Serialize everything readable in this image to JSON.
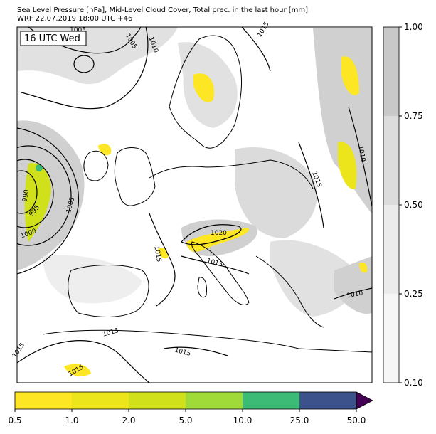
{
  "header": {
    "title_line1": "Sea Level Pressure [hPa], Mid-Level Cloud Cover, Total prec. in the last hour [mm]",
    "title_line2": "WRF 22.07.2019 18:00 UTC +46"
  },
  "map": {
    "time_label": "16 UTC Wed",
    "sea_color": "#ffffff",
    "land_color": "#ffffff",
    "coast_color": "#000000",
    "isobar_color": "#000000",
    "isobar_labels": [
      {
        "text": "1005"
      },
      {
        "text": "1005"
      },
      {
        "text": "1010"
      },
      {
        "text": "1015"
      },
      {
        "text": "990"
      },
      {
        "text": "995"
      },
      {
        "text": "1000"
      },
      {
        "text": "1005"
      },
      {
        "text": "1010"
      },
      {
        "text": "1015"
      },
      {
        "text": "1020"
      },
      {
        "text": "1015"
      },
      {
        "text": "1015"
      },
      {
        "text": "1010"
      },
      {
        "text": "1015"
      },
      {
        "text": "1015"
      },
      {
        "text": "1015"
      },
      {
        "text": "1015"
      }
    ]
  },
  "cloud_colorbar": {
    "ticks": [
      "1.00",
      "0.75",
      "0.50",
      "0.25",
      "0.10"
    ],
    "colors": [
      "#c8c8c8",
      "#dcdcdc",
      "#ebebeb",
      "#f6f6f6"
    ]
  },
  "precip_colorbar": {
    "ticks": [
      "0.5",
      "1.0",
      "2.0",
      "5.0",
      "10.0",
      "25.0",
      "50.0"
    ],
    "colors": [
      "#fde725",
      "#ede51b",
      "#d0e11c",
      "#a0da39",
      "#3bbb75",
      "#2e6f8e",
      "#3b528b"
    ],
    "extend_color": "#440154"
  }
}
